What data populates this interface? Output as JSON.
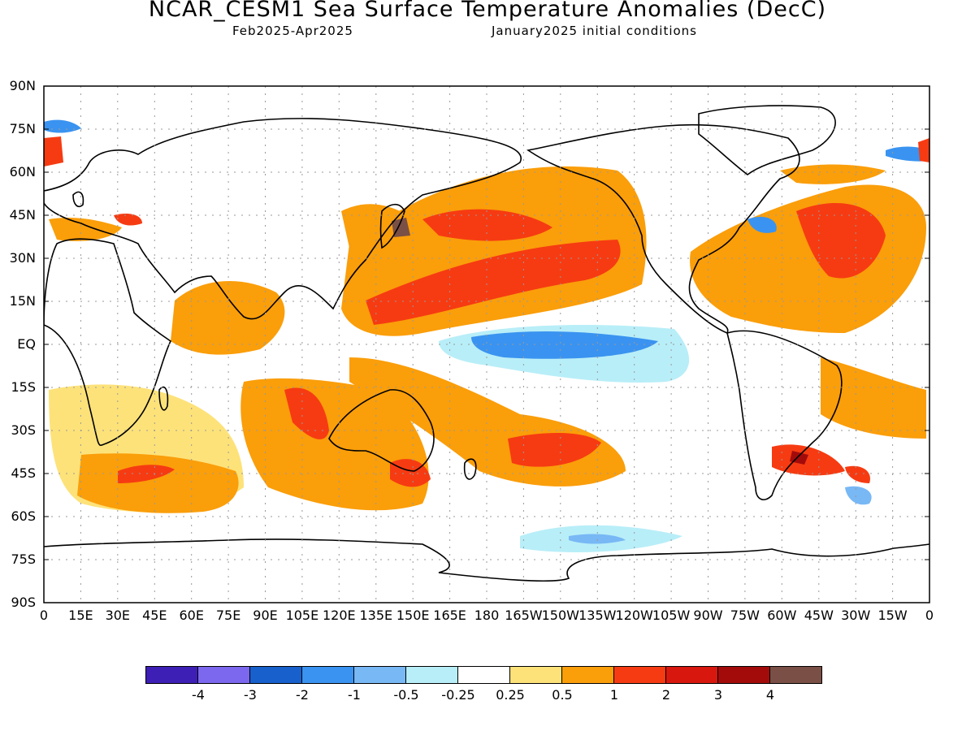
{
  "title": "NCAR_CESM1 Sea Surface Temperature Anomalies (DecC)",
  "subtitle_left": "Feb2025-Apr2025",
  "subtitle_right": "January2025 initial conditions",
  "lat_labels": [
    "90N",
    "75N",
    "60N",
    "45N",
    "30N",
    "15N",
    "EQ",
    "15S",
    "30S",
    "45S",
    "60S",
    "75S",
    "90S"
  ],
  "lon_labels": [
    "0",
    "15E",
    "30E",
    "45E",
    "60E",
    "75E",
    "90E",
    "105E",
    "120E",
    "135E",
    "150E",
    "165E",
    "180",
    "165W",
    "150W",
    "135W",
    "120W",
    "105W",
    "90W",
    "75W",
    "60W",
    "45W",
    "30W",
    "15W",
    "0"
  ],
  "colorbar": {
    "colors": [
      "#3d1fb5",
      "#7b68ee",
      "#1860cc",
      "#3a93f0",
      "#78b8f5",
      "#b8eef8",
      "#ffffff",
      "#fde27a",
      "#fa9e0a",
      "#f63b12",
      "#d8180e",
      "#a30b0b",
      "#7a4f45"
    ],
    "labels": [
      "-4",
      "-3",
      "-2",
      "-1",
      "-0.5",
      "-0.25",
      "0.25",
      "0.5",
      "1",
      "2",
      "3",
      "4"
    ]
  }
}
